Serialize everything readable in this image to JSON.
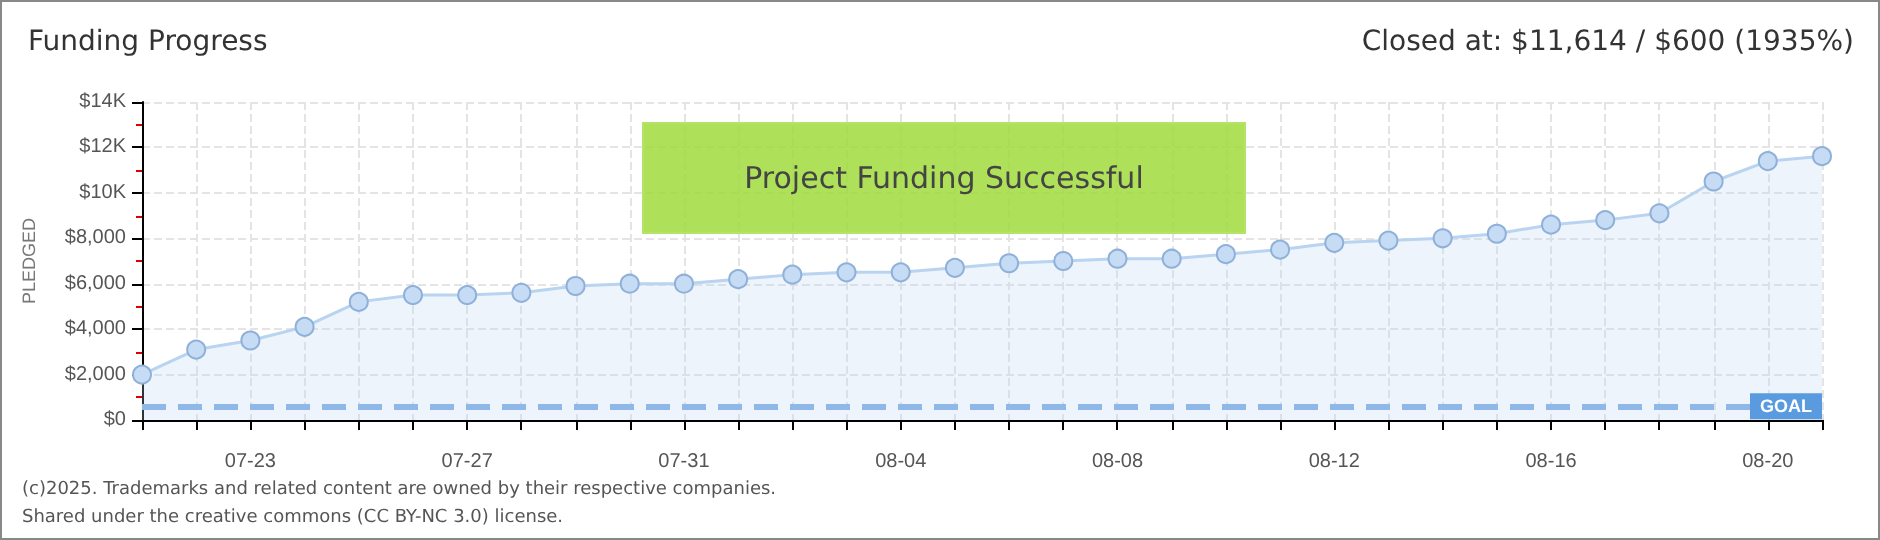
{
  "chart_data": {
    "type": "area",
    "title": "Funding Progress",
    "ylabel": "PLEDGED",
    "annotations": [
      "Closed at: $11,614 / $600 (1935%)",
      "Project Funding Successful",
      "(c)2025. Trademarks and related content are owned by their respective companies.",
      "Shared under the creative commons (CC BY-NC 3.0) license."
    ],
    "categories": [
      null,
      null,
      "07-23",
      null,
      null,
      null,
      "07-27",
      null,
      null,
      null,
      "07-31",
      null,
      null,
      null,
      "08-04",
      null,
      null,
      null,
      "08-08",
      null,
      null,
      null,
      "08-12",
      null,
      null,
      null,
      "08-16",
      null,
      null,
      null,
      "08-20",
      null
    ],
    "series": [
      {
        "color": "#b8d4f0",
        "values": [
          2000,
          3100,
          3500,
          4100,
          5200,
          5500,
          5500,
          5600,
          5900,
          6000,
          6000,
          6200,
          6400,
          6500,
          6500,
          6700,
          6900,
          7000,
          7100,
          7100,
          7300,
          7500,
          7800,
          7900,
          8000,
          8200,
          8600,
          8800,
          9100,
          10500,
          11400,
          11614
        ]
      }
    ],
    "ylim": [
      0,
      14000
    ],
    "yticks": [
      {
        "value": 0,
        "label": "$0"
      },
      {
        "value": 2000,
        "label": "$2,000"
      },
      {
        "value": 4000,
        "label": "$4,000"
      },
      {
        "value": 6000,
        "label": "$6,000"
      },
      {
        "value": 8000,
        "label": "$8,000"
      },
      {
        "value": 10000,
        "label": "$10K"
      },
      {
        "value": 12000,
        "label": "$12K"
      },
      {
        "value": 14000,
        "label": "$14K"
      }
    ],
    "ref_lines": [
      {
        "axis": "y",
        "value": 600,
        "label": "GOAL",
        "color": "#8fb8e8",
        "line_style": "dashed"
      }
    ],
    "grid": true,
    "marker": "circle"
  }
}
